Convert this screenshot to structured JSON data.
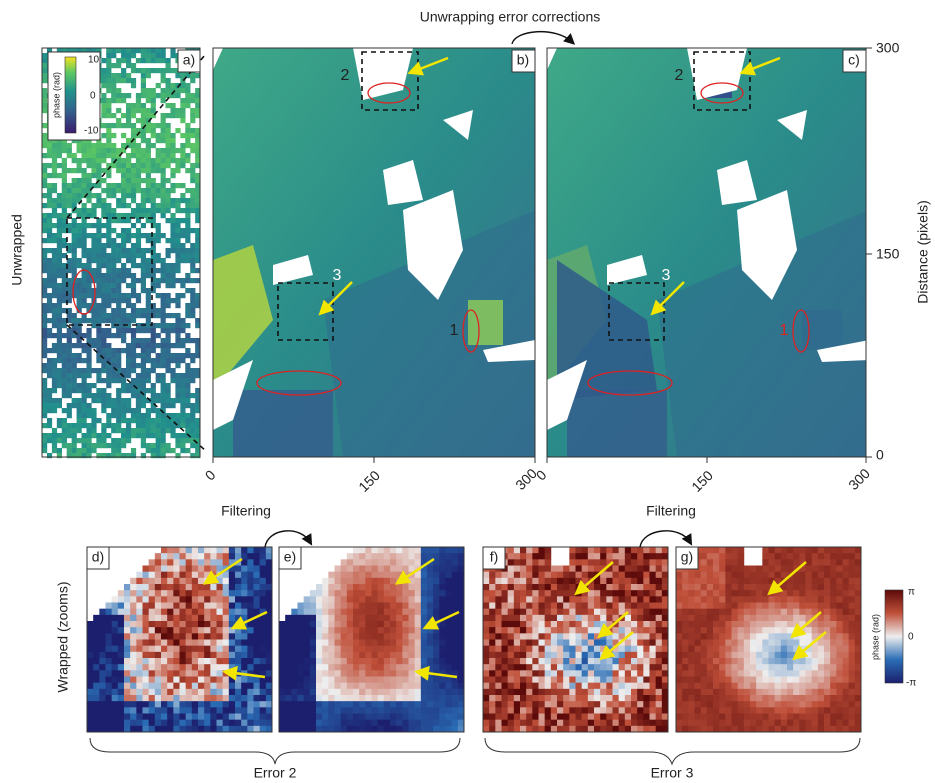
{
  "title": "Unwrapping error corrections",
  "row_labels": {
    "top": "Unwrapped",
    "bottom": "Wrapped (zooms)"
  },
  "panels": {
    "a": "a)",
    "b": "b)",
    "c": "c)",
    "d": "d)",
    "e": "e)",
    "f": "f)",
    "g": "g)"
  },
  "annotations": {
    "b": [
      "2",
      "3",
      "1"
    ],
    "c": [
      "2",
      "3",
      "1"
    ]
  },
  "x_ticks": {
    "b": [
      0,
      150,
      300
    ],
    "c": [
      0,
      150,
      300
    ]
  },
  "y_axis": {
    "label": "Distance (pixels)",
    "ticks": [
      300,
      150,
      0
    ]
  },
  "colorbars": {
    "unwrapped": {
      "title": "phase (rad)",
      "ticks": [
        10,
        0,
        -10
      ]
    },
    "wrapped": {
      "title": "phase (rad)",
      "ticks": [
        "π",
        "0",
        "-π"
      ]
    }
  },
  "filtering": [
    "Filtering",
    "Filtering"
  ],
  "groups": [
    "Error 2",
    "Error 3"
  ]
}
